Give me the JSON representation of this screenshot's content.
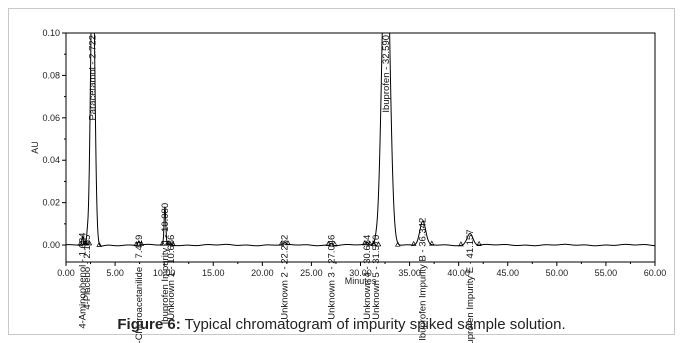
{
  "caption": {
    "prefix": "Figure 6:",
    "text": "Typical chromatogram of impurity spiked sample solution."
  },
  "chart_data": {
    "type": "line",
    "xlabel": "Minutes",
    "ylabel": "AU",
    "xlim": [
      0,
      60
    ],
    "ylim": [
      -0.008,
      0.1
    ],
    "x_ticks": [
      0,
      5,
      10,
      15,
      20,
      25,
      30,
      35,
      40,
      45,
      50,
      55,
      60
    ],
    "x_tick_labels": [
      "0.00",
      "5.00",
      "10.00",
      "15.00",
      "20.00",
      "25.00",
      "30.00",
      "35.00",
      "40.00",
      "45.00",
      "50.00",
      "55.00",
      "60.00"
    ],
    "y_ticks": [
      0,
      0.02,
      0.04,
      0.06,
      0.08,
      0.1
    ],
    "y_tick_labels": [
      "0.00",
      "0.02",
      "0.04",
      "0.06",
      "0.08",
      "0.10"
    ],
    "grid": false,
    "line_color": "#000000",
    "peaks": [
      {
        "label": "4-Placebo - 2.165",
        "rt": 2.165,
        "height": 0.003,
        "width": 0.1
      },
      {
        "label": "4-Aminophenol - 1.684",
        "rt": 1.684,
        "height": 0.004,
        "width": 0.1
      },
      {
        "label": "Paracetamol - 2.722",
        "rt": 2.722,
        "height": 0.14,
        "width": 0.3
      },
      {
        "label": "4-Chloroacetanilide - 7.419",
        "rt": 7.419,
        "height": 0.002,
        "width": 0.12
      },
      {
        "label": "Ibuprofen Impurity J - 10.080",
        "rt": 10.08,
        "height": 0.018,
        "width": 0.12
      },
      {
        "label": "Unknown 1 - 10.686",
        "rt": 10.686,
        "height": 0.001,
        "width": 0.1
      },
      {
        "label": "Unknown 2 - 22.282",
        "rt": 22.282,
        "height": 0.001,
        "width": 0.15
      },
      {
        "label": "Unknown 3 - 27.046",
        "rt": 27.046,
        "height": 0.001,
        "width": 0.15
      },
      {
        "label": "Unknown 4 - 30.684",
        "rt": 30.684,
        "height": 0.001,
        "width": 0.12
      },
      {
        "label": "Unknown 5 - 31.570",
        "rt": 31.57,
        "height": 0.001,
        "width": 0.12
      },
      {
        "label": "Ibuprofen - 32.590",
        "rt": 32.59,
        "height": 0.16,
        "width": 0.55
      },
      {
        "label": "Ibuprofen Impurity B - 36.342",
        "rt": 36.342,
        "height": 0.011,
        "width": 0.42
      },
      {
        "label": "Ibuprofen Impurity E - 41.157",
        "rt": 41.157,
        "height": 0.0055,
        "width": 0.42
      }
    ]
  }
}
